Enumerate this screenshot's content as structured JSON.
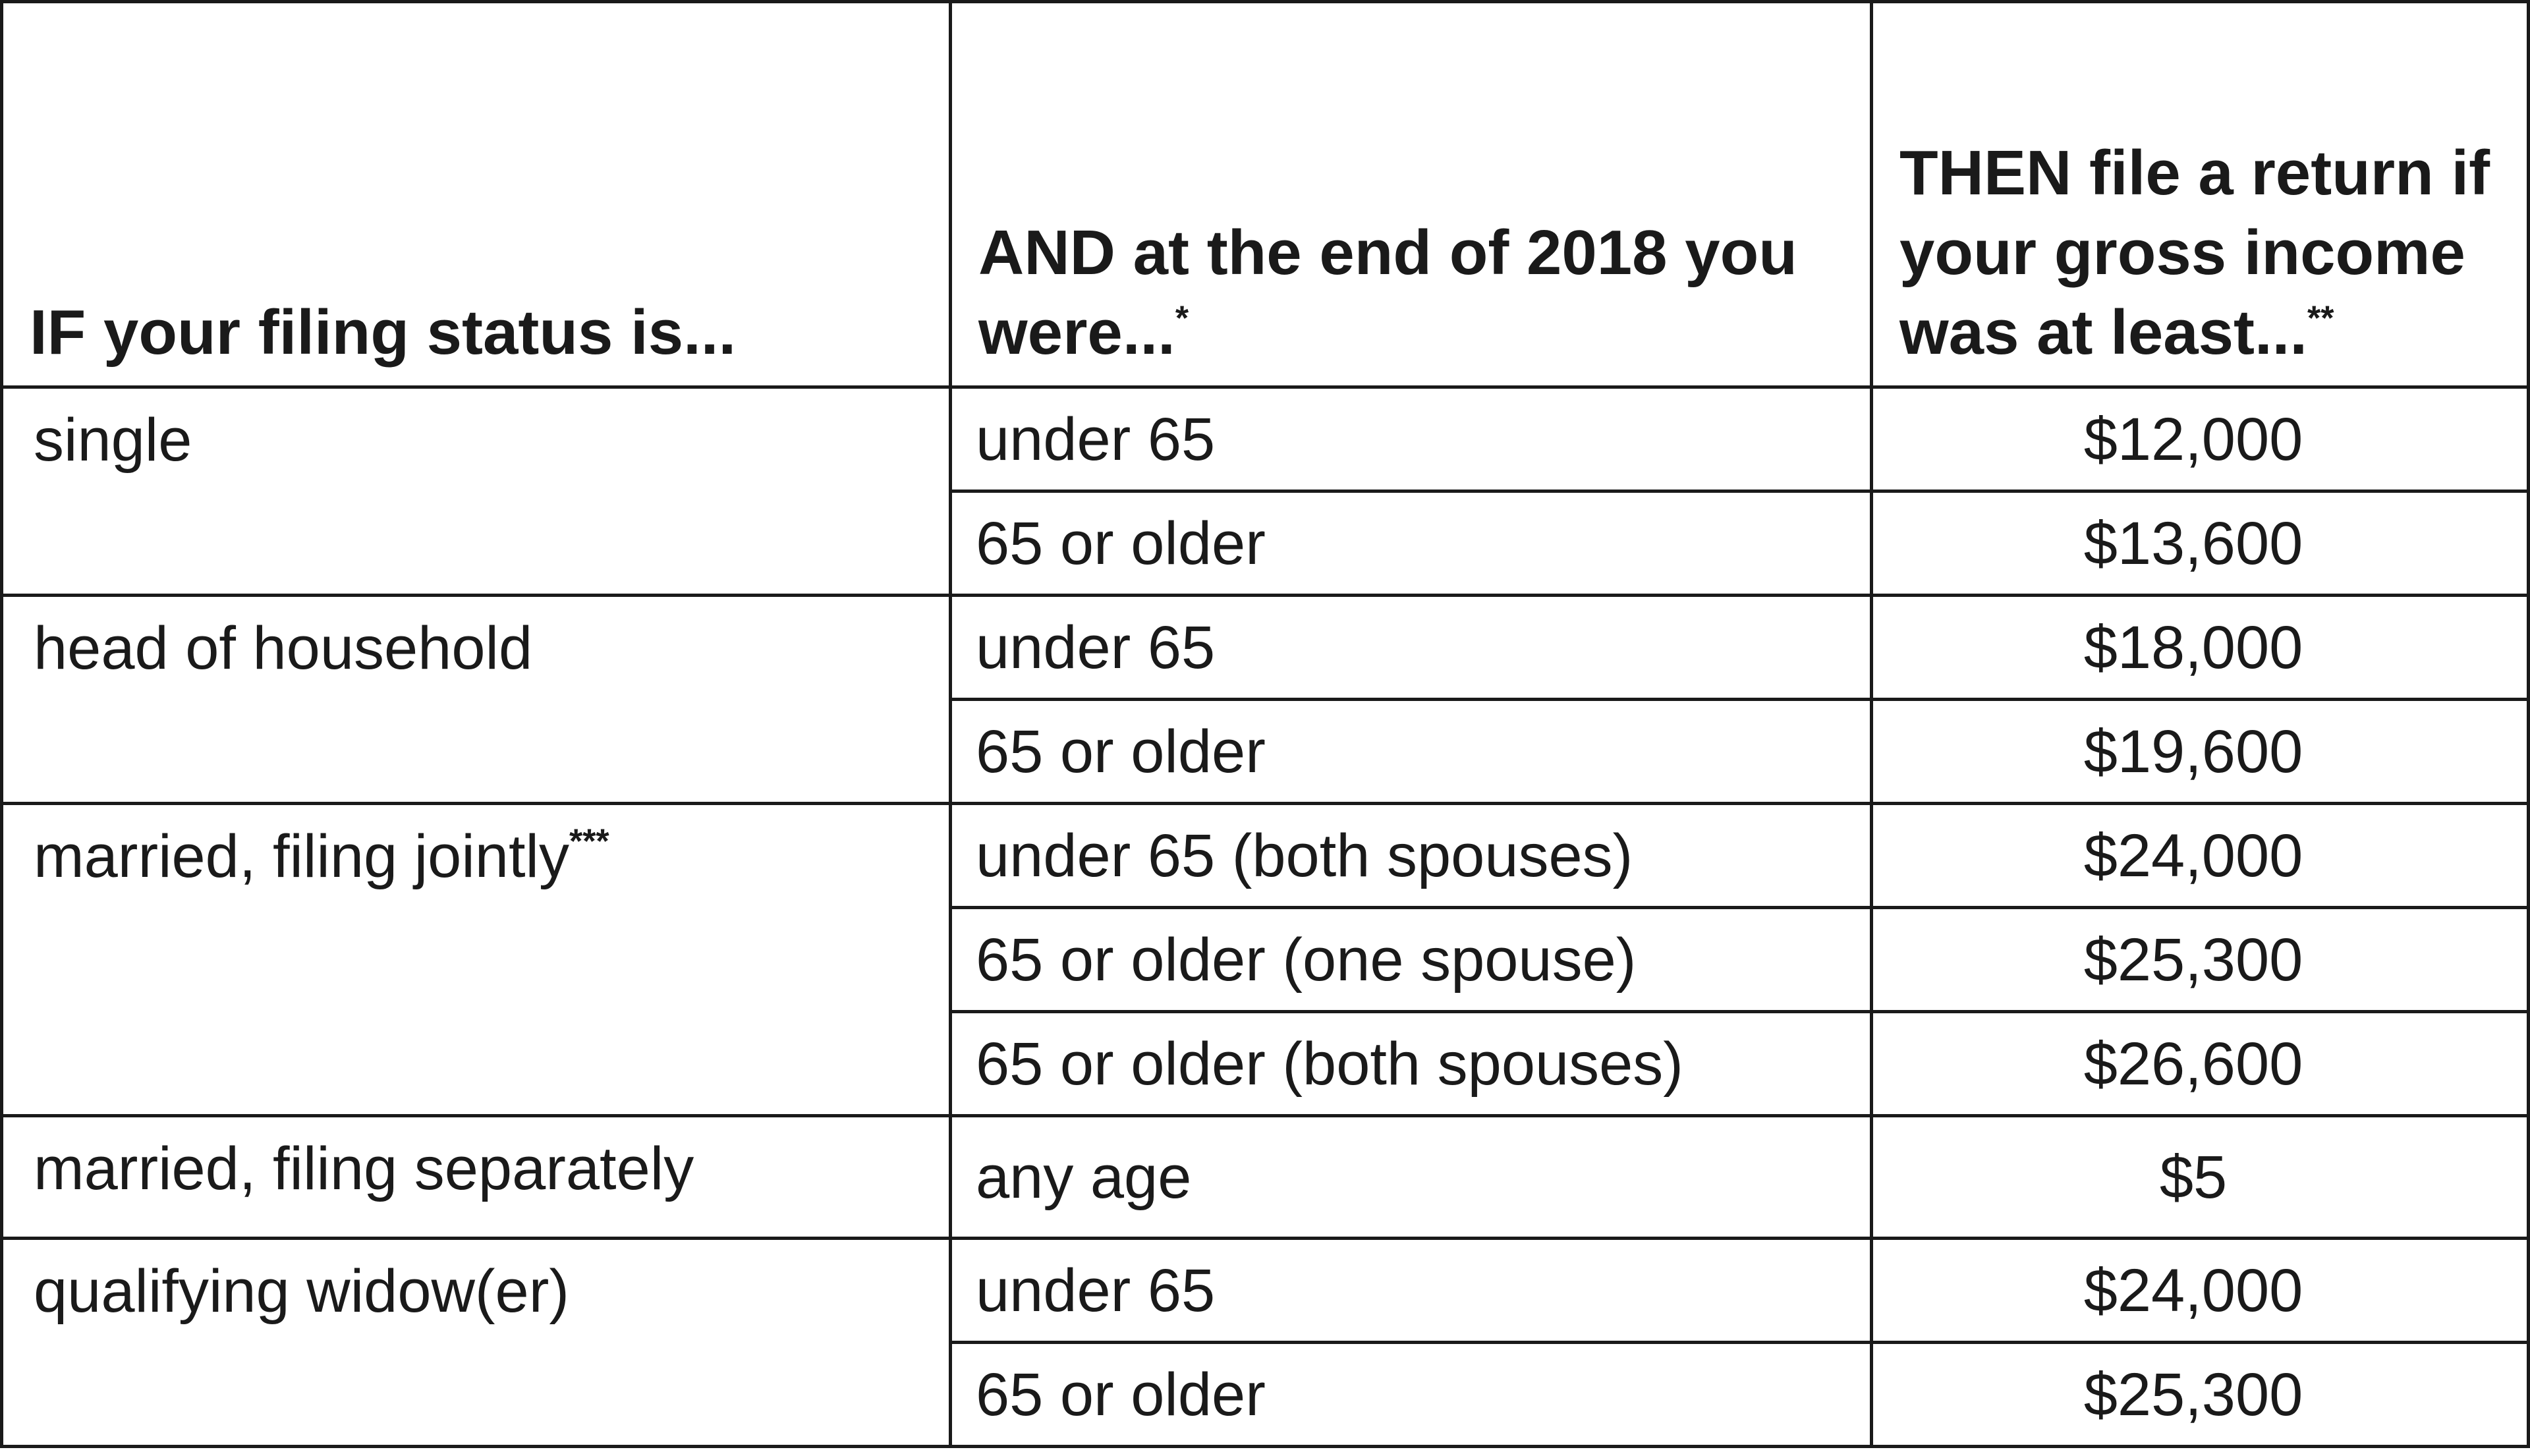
{
  "table": {
    "headers": {
      "status": "IF your filing status is...",
      "age": "AND at the end of 2018 you were...",
      "age_mark": "*",
      "income": "THEN file a return if your gross income was at least...",
      "income_mark": "**"
    },
    "groups": [
      {
        "status": "single",
        "mark": "",
        "rows": [
          {
            "age": "under 65",
            "income": "$12,000"
          },
          {
            "age": "65 or older",
            "income": "$13,600"
          }
        ]
      },
      {
        "status": "head of household",
        "mark": "",
        "rows": [
          {
            "age": "under 65",
            "income": "$18,000"
          },
          {
            "age": "65 or older",
            "income": "$19,600"
          }
        ]
      },
      {
        "status": "married, filing jointly",
        "mark": "***",
        "rows": [
          {
            "age": "under 65 (both spouses)",
            "income": "$24,000"
          },
          {
            "age": "65 or older (one spouse)",
            "income": "$25,300"
          },
          {
            "age": "65 or older (both spouses)",
            "income": "$26,600"
          }
        ]
      },
      {
        "status": "married, filing separately",
        "mark": "",
        "rows": [
          {
            "age": "any age",
            "income": "$5"
          }
        ]
      },
      {
        "status": "qualifying widow(er)",
        "mark": "",
        "rows": [
          {
            "age": "under 65",
            "income": "$24,000"
          },
          {
            "age": "65 or older",
            "income": "$25,300"
          }
        ]
      }
    ]
  }
}
